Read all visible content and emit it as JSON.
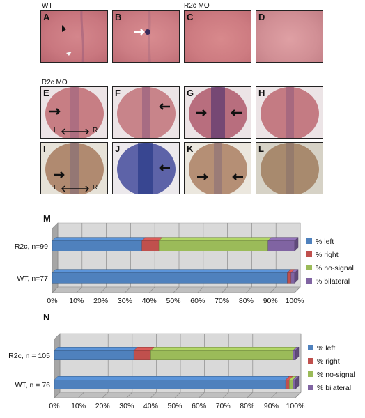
{
  "group_labels": {
    "wt": "WT",
    "r2c_top": "R2c MO",
    "r2c_mid": "R2c MO"
  },
  "panels_top": [
    "A",
    "B",
    "C",
    "D"
  ],
  "panels_row1": [
    "E",
    "F",
    "G",
    "H"
  ],
  "panels_row2": [
    "I",
    "J",
    "K",
    "L"
  ],
  "lr_axis": {
    "left": "L",
    "right": "R"
  },
  "legend": [
    "% left",
    "% right",
    "% no-signal",
    "% bilateral"
  ],
  "colors": {
    "left": "#4f81bd",
    "right": "#c0504d",
    "no_signal": "#9bbb59",
    "bilateral": "#8064a2",
    "wall": "#d9d9d9",
    "floor": "#bfbfbf"
  },
  "chart_data": [
    {
      "type": "bar",
      "panel": "M",
      "orientation": "horizontal-stacked-100%",
      "categories": [
        "R2c, n=99",
        "WT, n=77"
      ],
      "series": [
        {
          "name": "% left",
          "values": [
            37,
            97
          ]
        },
        {
          "name": "% right",
          "values": [
            7,
            1.5
          ]
        },
        {
          "name": "% no-signal",
          "values": [
            45,
            0
          ]
        },
        {
          "name": "% bilateral",
          "values": [
            11,
            1.5
          ]
        }
      ],
      "xlim": [
        0,
        100
      ],
      "x_ticks": [
        "0%",
        "10%",
        "20%",
        "30%",
        "40%",
        "50%",
        "60%",
        "70%",
        "80%",
        "90%",
        "100%"
      ],
      "grid": true,
      "legend_position": "right"
    },
    {
      "type": "bar",
      "panel": "N",
      "orientation": "horizontal-stacked-100%",
      "categories": [
        "R2c, n = 105",
        "WT, n = 76"
      ],
      "series": [
        {
          "name": "% left",
          "values": [
            33,
            96
          ]
        },
        {
          "name": "% right",
          "values": [
            7,
            1.5
          ]
        },
        {
          "name": "% no-signal",
          "values": [
            59,
            1.5
          ]
        },
        {
          "name": "% bilateral",
          "values": [
            1,
            1
          ]
        }
      ],
      "xlim": [
        0,
        100
      ],
      "x_ticks": [
        "0%",
        "10%",
        "20%",
        "30%",
        "40%",
        "50%",
        "60%",
        "70%",
        "80%",
        "90%",
        "100%"
      ],
      "grid": true,
      "legend_position": "right"
    }
  ]
}
